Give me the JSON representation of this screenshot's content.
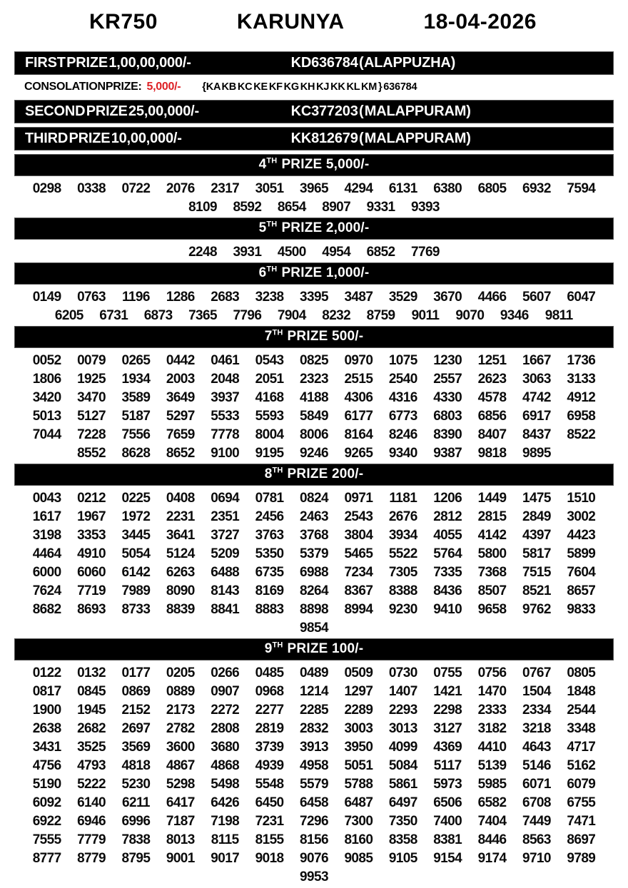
{
  "header": {
    "draw_code": "KR750",
    "lottery_name": "KARUNYA",
    "draw_date": "18-04-2026"
  },
  "prizes": {
    "first": {
      "label": "FIRST PRIZE 1,00,00,000/-",
      "winner": "KD636784 ( ALAPPUZHA)"
    },
    "consolation": {
      "label": "CONSOLATION PRIZE:",
      "amount": "5,000/-",
      "amount_color": "#dd2025",
      "series": "{KA KB KC KE KF KG KH KJ KK KL KM } 636784"
    },
    "second": {
      "label": "SECOND PRIZE 25,00,000/-",
      "winner": "KC377203 ( MALAPPURAM)"
    },
    "third": {
      "label": "THIRD PRIZE 10,00,000/-",
      "winner": "KK812679 ( MALAPPURAM)"
    }
  },
  "sections": [
    {
      "num": "4",
      "sup": "TH",
      "rest": "PRIZE 5,000/-",
      "rows": [
        [
          "0298",
          "0338",
          "0722",
          "2076",
          "2317",
          "3051",
          "3965",
          "4294",
          "6131",
          "6380",
          "6805",
          "6932",
          "7594"
        ],
        [
          "8109",
          "8592",
          "8654",
          "8907",
          "9331",
          "9393"
        ]
      ]
    },
    {
      "num": "5",
      "sup": "TH",
      "rest": "PRIZE 2,000/-",
      "rows": [
        [
          "2248",
          "3931",
          "4500",
          "4954",
          "6852",
          "7769"
        ]
      ]
    },
    {
      "num": "6",
      "sup": "TH",
      "rest": "PRIZE 1,000/-",
      "rows": [
        [
          "0149",
          "0763",
          "1196",
          "1286",
          "2683",
          "3238",
          "3395",
          "3487",
          "3529",
          "3670",
          "4466",
          "5607",
          "6047"
        ],
        [
          "6205",
          "6731",
          "6873",
          "7365",
          "7796",
          "7904",
          "8232",
          "8759",
          "9011",
          "9070",
          "9346",
          "9811"
        ]
      ]
    },
    {
      "num": "7",
      "sup": "TH",
      "rest": "PRIZE 500/-",
      "rows": [
        [
          "0052",
          "0079",
          "0265",
          "0442",
          "0461",
          "0543",
          "0825",
          "0970",
          "1075",
          "1230",
          "1251",
          "1667",
          "1736"
        ],
        [
          "1806",
          "1925",
          "1934",
          "2003",
          "2048",
          "2051",
          "2323",
          "2515",
          "2540",
          "2557",
          "2623",
          "3063",
          "3133"
        ],
        [
          "3420",
          "3470",
          "3589",
          "3649",
          "3937",
          "4168",
          "4188",
          "4306",
          "4316",
          "4330",
          "4578",
          "4742",
          "4912"
        ],
        [
          "5013",
          "5127",
          "5187",
          "5297",
          "5533",
          "5593",
          "5849",
          "6177",
          "6773",
          "6803",
          "6856",
          "6917",
          "6958"
        ],
        [
          "7044",
          "7228",
          "7556",
          "7659",
          "7778",
          "8004",
          "8006",
          "8164",
          "8246",
          "8390",
          "8407",
          "8437",
          "8522"
        ],
        [
          "8552",
          "8628",
          "8652",
          "9100",
          "9195",
          "9246",
          "9265",
          "9340",
          "9387",
          "9818",
          "9895"
        ]
      ]
    },
    {
      "num": "8",
      "sup": "TH",
      "rest": "PRIZE 200/-",
      "rows": [
        [
          "0043",
          "0212",
          "0225",
          "0408",
          "0694",
          "0781",
          "0824",
          "0971",
          "1181",
          "1206",
          "1449",
          "1475",
          "1510"
        ],
        [
          "1617",
          "1967",
          "1972",
          "2231",
          "2351",
          "2456",
          "2463",
          "2543",
          "2676",
          "2812",
          "2815",
          "2849",
          "3002"
        ],
        [
          "3198",
          "3353",
          "3445",
          "3641",
          "3727",
          "3763",
          "3768",
          "3804",
          "3934",
          "4055",
          "4142",
          "4397",
          "4423"
        ],
        [
          "4464",
          "4910",
          "5054",
          "5124",
          "5209",
          "5350",
          "5379",
          "5465",
          "5522",
          "5764",
          "5800",
          "5817",
          "5899"
        ],
        [
          "6000",
          "6060",
          "6142",
          "6263",
          "6488",
          "6735",
          "6988",
          "7234",
          "7305",
          "7335",
          "7368",
          "7515",
          "7604"
        ],
        [
          "7624",
          "7719",
          "7989",
          "8090",
          "8143",
          "8169",
          "8264",
          "8367",
          "8388",
          "8436",
          "8507",
          "8521",
          "8657"
        ],
        [
          "8682",
          "8693",
          "8733",
          "8839",
          "8841",
          "8883",
          "8898",
          "8994",
          "9230",
          "9410",
          "9658",
          "9762",
          "9833"
        ],
        [
          "9854"
        ]
      ]
    },
    {
      "num": "9",
      "sup": "TH",
      "rest": "PRIZE 100/-",
      "rows": [
        [
          "0122",
          "0132",
          "0177",
          "0205",
          "0266",
          "0485",
          "0489",
          "0509",
          "0730",
          "0755",
          "0756",
          "0767",
          "0805"
        ],
        [
          "0817",
          "0845",
          "0869",
          "0889",
          "0907",
          "0968",
          "1214",
          "1297",
          "1407",
          "1421",
          "1470",
          "1504",
          "1848"
        ],
        [
          "1900",
          "1945",
          "2152",
          "2173",
          "2272",
          "2277",
          "2285",
          "2289",
          "2293",
          "2298",
          "2333",
          "2334",
          "2544"
        ],
        [
          "2638",
          "2682",
          "2697",
          "2782",
          "2808",
          "2819",
          "2832",
          "3003",
          "3013",
          "3127",
          "3182",
          "3218",
          "3348"
        ],
        [
          "3431",
          "3525",
          "3569",
          "3600",
          "3680",
          "3739",
          "3913",
          "3950",
          "4099",
          "4369",
          "4410",
          "4643",
          "4717"
        ],
        [
          "4756",
          "4793",
          "4818",
          "4867",
          "4868",
          "4939",
          "4958",
          "5051",
          "5084",
          "5117",
          "5139",
          "5146",
          "5162"
        ],
        [
          "5190",
          "5222",
          "5230",
          "5298",
          "5498",
          "5548",
          "5579",
          "5788",
          "5861",
          "5973",
          "5985",
          "6071",
          "6079"
        ],
        [
          "6092",
          "6140",
          "6211",
          "6417",
          "6426",
          "6450",
          "6458",
          "6487",
          "6497",
          "6506",
          "6582",
          "6708",
          "6755"
        ],
        [
          "6922",
          "6946",
          "6996",
          "7187",
          "7198",
          "7231",
          "7296",
          "7300",
          "7350",
          "7400",
          "7404",
          "7449",
          "7471"
        ],
        [
          "7555",
          "7779",
          "7838",
          "8013",
          "8115",
          "8155",
          "8156",
          "8160",
          "8358",
          "8381",
          "8446",
          "8563",
          "8697"
        ],
        [
          "8777",
          "8779",
          "8795",
          "9001",
          "9017",
          "9018",
          "9076",
          "9085",
          "9105",
          "9154",
          "9174",
          "9710",
          "9789"
        ],
        [
          "9953"
        ]
      ]
    }
  ]
}
